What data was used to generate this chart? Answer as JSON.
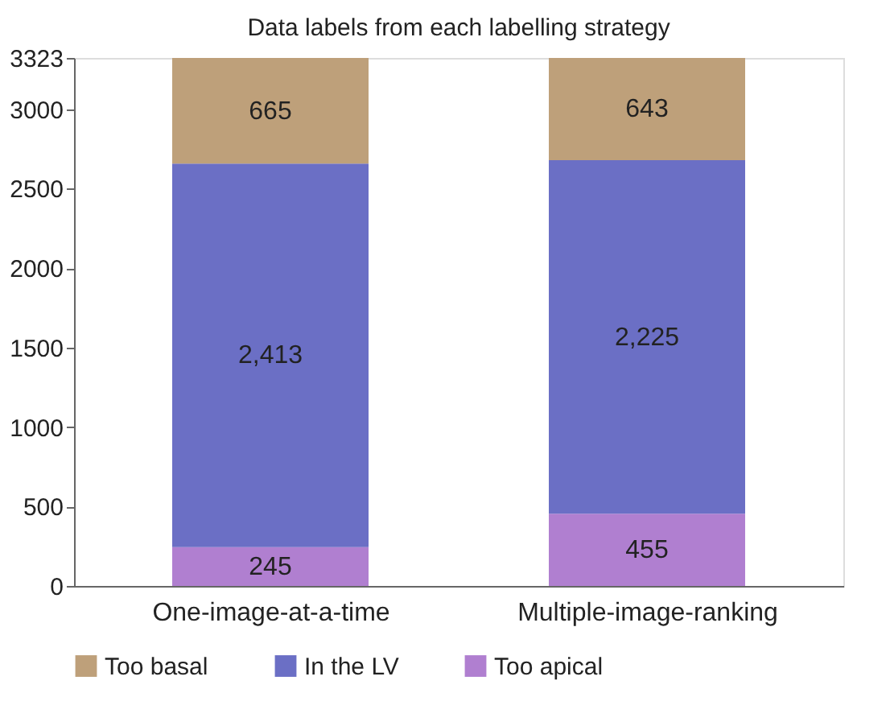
{
  "chart_data": {
    "type": "bar",
    "title": "Data labels from each labelling strategy",
    "categories": [
      "One-image-at-a-time",
      "Multiple-image-ranking"
    ],
    "stacked": true,
    "series": [
      {
        "name": "Too apical",
        "color": "#b07fd0",
        "values": [
          245,
          455
        ],
        "value_labels": [
          "245",
          "455"
        ]
      },
      {
        "name": "In the LV",
        "color": "#6b6fc5",
        "values": [
          2413,
          2225
        ],
        "value_labels": [
          "2,413",
          "2,225"
        ]
      },
      {
        "name": "Too basal",
        "color": "#bea07a",
        "values": [
          665,
          643
        ],
        "value_labels": [
          "665",
          "643"
        ]
      }
    ],
    "ylim": [
      0,
      3323
    ],
    "yticks": [
      0,
      500,
      1000,
      1500,
      2000,
      2500,
      3000,
      3323
    ],
    "grid": false,
    "legend": "bottom"
  }
}
